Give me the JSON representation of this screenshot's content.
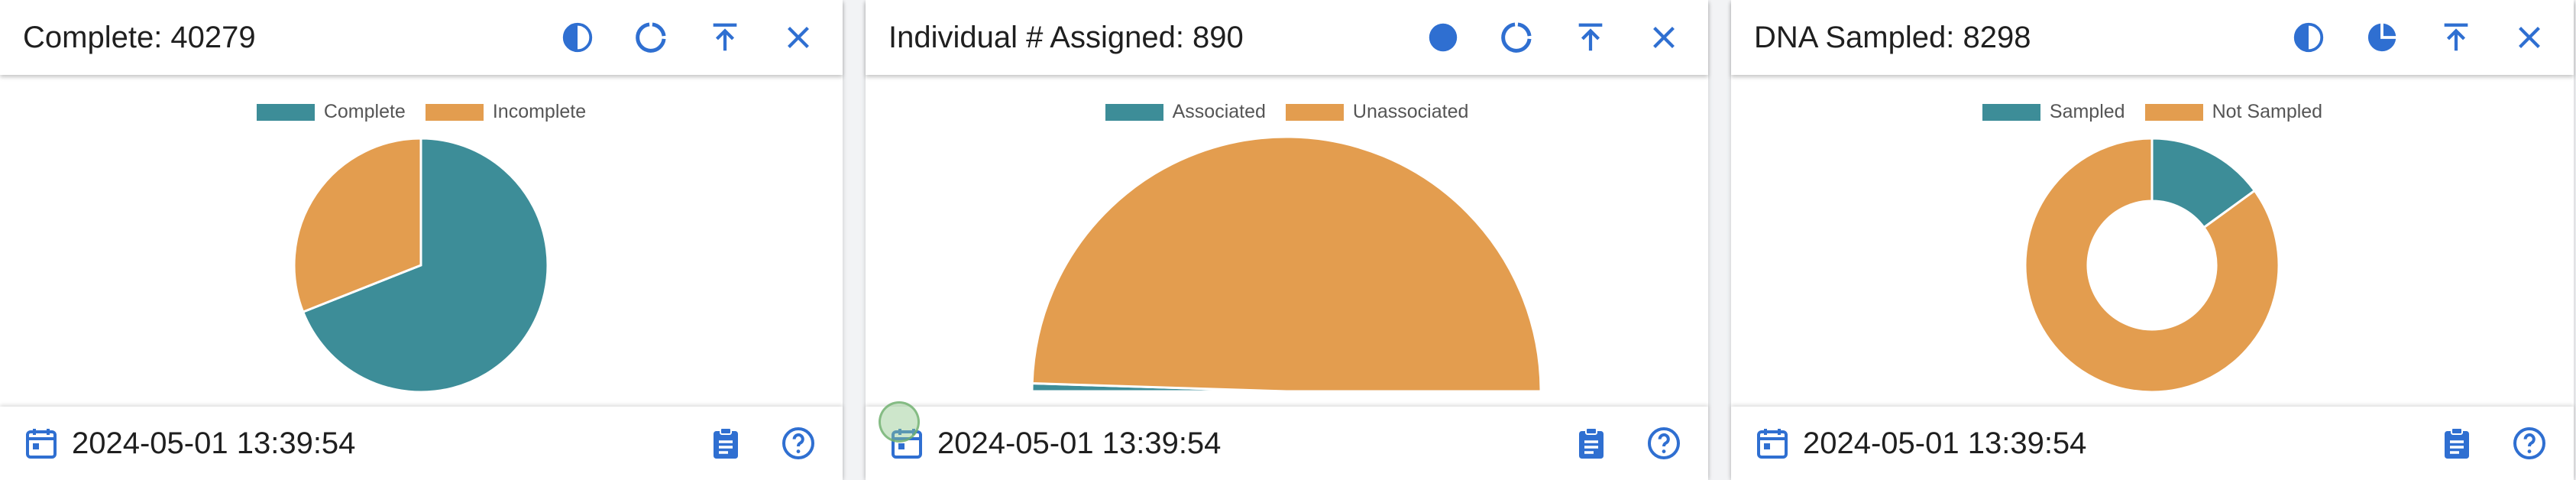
{
  "colors": {
    "primary": "#3d8d98",
    "secondary": "#e39d4f",
    "icon_blue": "#2f6fd1",
    "title_text": "#1f1f1f",
    "legend_text": "#555555"
  },
  "cards": [
    {
      "title": "Complete: 40279",
      "header_icons": [
        "contrast-icon",
        "ring-chart-icon",
        "export-icon",
        "close-icon"
      ],
      "legend": [
        "Complete",
        "Incomplete"
      ],
      "date": "2024-05-01 13:39:54",
      "footer_icons": [
        "clipboard-icon",
        "help-icon"
      ]
    },
    {
      "title": "Individual # Assigned: 890",
      "header_icons": [
        "circle-icon",
        "ring-chart-icon",
        "export-icon",
        "close-icon"
      ],
      "legend": [
        "Associated",
        "Unassociated"
      ],
      "date": "2024-05-01 13:39:54",
      "footer_icons": [
        "clipboard-icon",
        "help-icon"
      ]
    },
    {
      "title": "DNA Sampled: 8298",
      "header_icons": [
        "contrast-icon",
        "pie-chart-icon",
        "export-icon",
        "close-icon"
      ],
      "legend": [
        "Sampled",
        "Not Sampled"
      ],
      "date": "2024-05-01 13:39:54",
      "footer_icons": [
        "clipboard-icon",
        "help-icon"
      ]
    }
  ],
  "chart_data": [
    {
      "type": "pie",
      "categories": [
        "Complete",
        "Incomplete"
      ],
      "values": [
        69,
        31
      ],
      "legend_position": "top"
    },
    {
      "type": "pie",
      "variant": "half",
      "categories": [
        "Associated",
        "Unassociated"
      ],
      "values": [
        1,
        99
      ],
      "legend_position": "top"
    },
    {
      "type": "pie",
      "variant": "donut",
      "categories": [
        "Sampled",
        "Not Sampled"
      ],
      "values": [
        15,
        85
      ],
      "legend_position": "top"
    }
  ]
}
